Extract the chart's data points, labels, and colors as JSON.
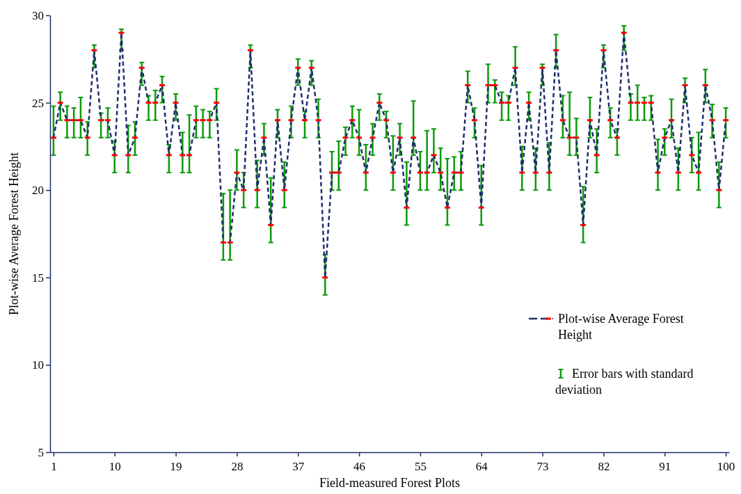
{
  "chart_data": {
    "type": "line",
    "xlabel": "Field-measured  Forest Plots",
    "ylabel": "Plot-wise Average  Forest Height",
    "x": [
      1,
      2,
      3,
      4,
      5,
      6,
      7,
      8,
      9,
      10,
      11,
      12,
      13,
      14,
      15,
      16,
      17,
      18,
      19,
      20,
      21,
      22,
      23,
      24,
      25,
      26,
      27,
      28,
      29,
      30,
      31,
      32,
      33,
      34,
      35,
      36,
      37,
      38,
      39,
      40,
      41,
      42,
      43,
      44,
      45,
      46,
      47,
      48,
      49,
      50,
      51,
      52,
      53,
      54,
      55,
      56,
      57,
      58,
      59,
      60,
      61,
      62,
      63,
      64,
      65,
      66,
      67,
      68,
      69,
      70,
      71,
      72,
      73,
      74,
      75,
      76,
      77,
      78,
      79,
      80,
      81,
      82,
      83,
      84,
      85,
      86,
      87,
      88,
      89,
      90,
      91,
      92,
      93,
      94,
      95,
      96,
      97,
      98,
      99,
      100
    ],
    "series": [
      {
        "name": "Plot-wise Average Forest Height",
        "color": "#1f2d6b",
        "values": [
          23,
          25,
          24,
          24,
          24,
          23,
          28,
          24,
          24,
          22,
          29,
          22,
          23,
          27,
          25,
          25,
          26,
          22,
          25,
          22,
          22,
          24,
          24,
          24,
          25,
          17,
          17,
          21,
          20,
          28,
          20,
          23,
          18,
          24,
          20,
          24,
          27,
          24,
          27,
          24,
          15,
          21,
          21,
          23,
          24,
          23,
          21,
          23,
          25,
          24,
          21,
          23,
          19,
          23,
          21,
          21,
          22,
          21,
          19,
          21,
          21,
          26,
          24,
          19,
          26,
          26,
          25,
          25,
          27,
          21,
          25,
          21,
          27,
          21,
          28,
          24,
          23,
          23,
          18,
          24,
          22,
          28,
          24,
          23,
          29,
          25,
          25,
          25,
          25,
          21,
          23,
          24,
          21,
          26,
          22,
          21,
          26,
          24,
          20,
          24
        ],
        "errors": [
          [
            22,
            24.8
          ],
          [
            24,
            25.6
          ],
          [
            23,
            24.8
          ],
          [
            23,
            24.7
          ],
          [
            23,
            25.3
          ],
          [
            22,
            23.9
          ],
          [
            27,
            28.3
          ],
          [
            23,
            24.4
          ],
          [
            23,
            24.7
          ],
          [
            21,
            22.8
          ],
          [
            28,
            29.2
          ],
          [
            21,
            23.7
          ],
          [
            22,
            23.9
          ],
          [
            26,
            27.3
          ],
          [
            24,
            25.4
          ],
          [
            24,
            25.7
          ],
          [
            25,
            26.5
          ],
          [
            21,
            22.6
          ],
          [
            24,
            25.5
          ],
          [
            21,
            23.3
          ],
          [
            21,
            24.3
          ],
          [
            23,
            24.8
          ],
          [
            23,
            24.6
          ],
          [
            23,
            24.5
          ],
          [
            24,
            25.8
          ],
          [
            16,
            19.8
          ],
          [
            16,
            20
          ],
          [
            20,
            22.3
          ],
          [
            19,
            21
          ],
          [
            27,
            28.3
          ],
          [
            19,
            21.7
          ],
          [
            22,
            23.8
          ],
          [
            17,
            20.7
          ],
          [
            23,
            24.6
          ],
          [
            19,
            21.6
          ],
          [
            23,
            24.8
          ],
          [
            26,
            27.5
          ],
          [
            23,
            24.5
          ],
          [
            26,
            27.4
          ],
          [
            23,
            25.2
          ],
          [
            14,
            16.3
          ],
          [
            20,
            22.2
          ],
          [
            20,
            22.8
          ],
          [
            22,
            23.6
          ],
          [
            23,
            24.8
          ],
          [
            22,
            24.6
          ],
          [
            20,
            22.6
          ],
          [
            22,
            23.8
          ],
          [
            24,
            25.5
          ],
          [
            23,
            24.5
          ],
          [
            20,
            23.1
          ],
          [
            22,
            23.8
          ],
          [
            18,
            21.6
          ],
          [
            22,
            25.1
          ],
          [
            20,
            22.2
          ],
          [
            20,
            23.4
          ],
          [
            21,
            23.5
          ],
          [
            20,
            22.4
          ],
          [
            18,
            21.8
          ],
          [
            20,
            21.9
          ],
          [
            20,
            22.2
          ],
          [
            25,
            26.8
          ],
          [
            23,
            24.7
          ],
          [
            18,
            21.4
          ],
          [
            25,
            27.2
          ],
          [
            25,
            26.3
          ],
          [
            24,
            25.6
          ],
          [
            24,
            25.4
          ],
          [
            26,
            28.2
          ],
          [
            20,
            22.5
          ],
          [
            24,
            25.6
          ],
          [
            20,
            22.4
          ],
          [
            26,
            27.2
          ],
          [
            20,
            22.7
          ],
          [
            27,
            28.9
          ],
          [
            23,
            25.4
          ],
          [
            22,
            25.6
          ],
          [
            22,
            24.1
          ],
          [
            17,
            20.2
          ],
          [
            23,
            25.3
          ],
          [
            21,
            23.5
          ],
          [
            27,
            28.3
          ],
          [
            23,
            24.7
          ],
          [
            22,
            23.5
          ],
          [
            28,
            29.4
          ],
          [
            24,
            25.5
          ],
          [
            24,
            26
          ],
          [
            24,
            25.3
          ],
          [
            24,
            25.4
          ],
          [
            20,
            22.9
          ],
          [
            22,
            23.5
          ],
          [
            23,
            25.2
          ],
          [
            20,
            22.4
          ],
          [
            25,
            26.4
          ],
          [
            21,
            23
          ],
          [
            20,
            23.3
          ],
          [
            25,
            26.9
          ],
          [
            23,
            24.9
          ],
          [
            19,
            21.6
          ],
          [
            23,
            24.7
          ]
        ]
      }
    ],
    "xlim": [
      0.5,
      100.5
    ],
    "xticks": [
      1,
      10,
      19,
      28,
      37,
      46,
      55,
      64,
      73,
      82,
      91,
      100
    ],
    "ylim": [
      5,
      30
    ],
    "yticks": [
      5,
      10,
      15,
      20,
      25,
      30
    ],
    "grid": false,
    "legend": "right",
    "marker": "square",
    "line_style": "dashed",
    "annotations": [
      "Error bars with standard deviation"
    ]
  }
}
